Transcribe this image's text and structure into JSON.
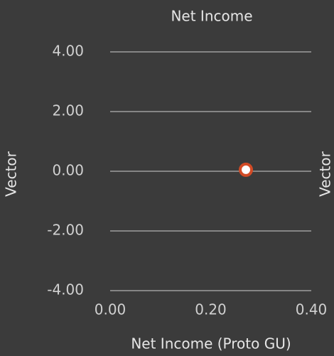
{
  "chart_data": {
    "type": "scatter",
    "title": "Net Income",
    "xlabel": "Net Income (Proto GU)",
    "ylabel": "Vector",
    "x": [
      0.27
    ],
    "values": [
      0.05
    ],
    "color": "#d24b26",
    "marker_fill": "#ffffff",
    "xlim": [
      0,
      0.4
    ],
    "xticks": [
      {
        "value": 0,
        "label": "0.00"
      },
      {
        "value": 0.2,
        "label": "0.20"
      },
      {
        "value": 0.4,
        "label": "0.40"
      }
    ],
    "ylim": [
      -4,
      4
    ],
    "yticks": [
      {
        "value": 4,
        "label": "4.00"
      },
      {
        "value": 2,
        "label": "2.00"
      },
      {
        "value": 0,
        "label": "0.00"
      },
      {
        "value": -2,
        "label": "-2.00"
      },
      {
        "value": -4,
        "label": "-4.00"
      }
    ],
    "grid": true
  }
}
